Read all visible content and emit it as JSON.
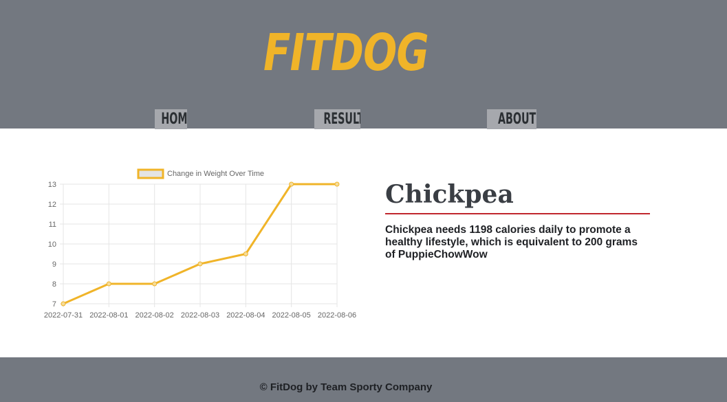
{
  "header": {
    "logo": "FITDOG",
    "nav": [
      {
        "label": "HOME"
      },
      {
        "label": "RESULTS"
      },
      {
        "label": "ABOUT US"
      }
    ]
  },
  "dog": {
    "name": "Chickpea",
    "description": "Chickpea needs 1198 calories daily to promote a healthy lifestyle, which is equivalent to 200 grams of PuppieChowWow"
  },
  "footer": {
    "text": "© FitDog by Team Sporty Company"
  },
  "colors": {
    "header_bg": "#737880",
    "accent": "#f0b429",
    "nav_bg": "#a6a8ad",
    "underline": "#c0262d"
  },
  "chart_data": {
    "type": "line",
    "categories": [
      "2022-07-31",
      "2022-08-01",
      "2022-08-02",
      "2022-08-03",
      "2022-08-04",
      "2022-08-05",
      "2022-08-06"
    ],
    "series": [
      {
        "name": "Change in Weight Over Time",
        "values": [
          7,
          8,
          8,
          9,
          9.5,
          13,
          13
        ],
        "color": "#f0b429"
      }
    ],
    "ylim": [
      7,
      13
    ],
    "yticks": [
      7,
      8,
      9,
      10,
      11,
      12,
      13
    ],
    "grid": true,
    "legend": "top-center"
  }
}
